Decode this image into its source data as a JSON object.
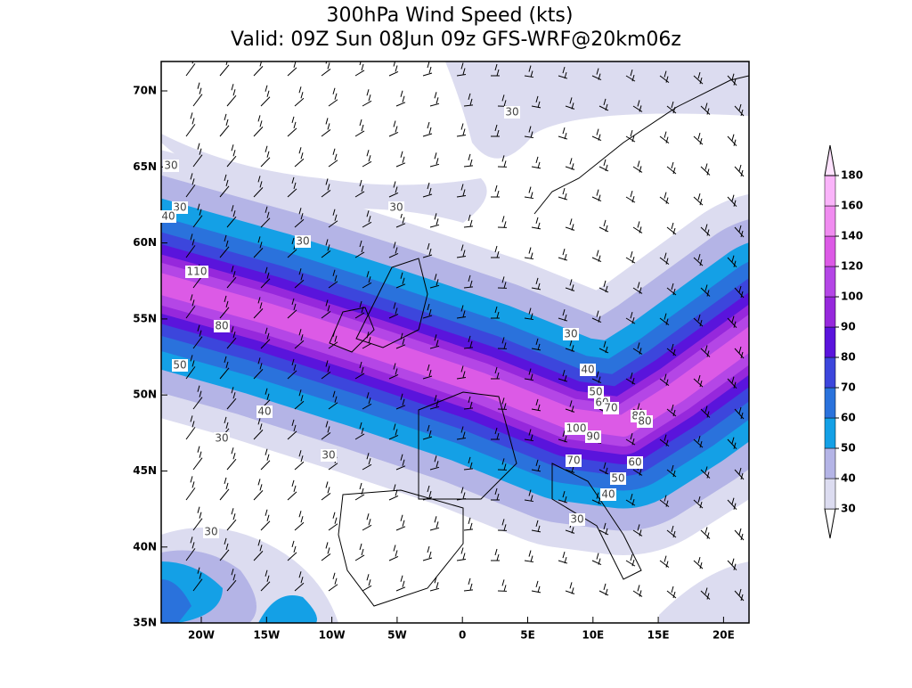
{
  "map": {
    "title": [
      "300hPa Wind Speed (kts)",
      "Valid: 09Z Sun 08Jun 09z GFS-WRF@20km06z"
    ],
    "lat_labels": [
      "70N",
      "65N",
      "60N",
      "55N",
      "50N",
      "45N",
      "40N",
      "35N"
    ],
    "lon_labels": [
      "20W",
      "15W",
      "10W",
      "5W",
      "0",
      "5E",
      "10E",
      "15E",
      "20E"
    ],
    "colorbar": {
      "levels": [
        30,
        40,
        50,
        60,
        70,
        80,
        90,
        100,
        120,
        140,
        160,
        180
      ],
      "colors": [
        "#dcdcf0",
        "#b4b4e6",
        "#14a0e6",
        "#2a72dc",
        "#3c46dc",
        "#5a14dc",
        "#9628dc",
        "#b446e6",
        "#dc5ae6",
        "#f08cf0",
        "#fab4fa"
      ],
      "over_color": "#fde2fd",
      "under_color": "#ffffff"
    },
    "contour_labels": [
      "30",
      "30",
      "30",
      "40",
      "30",
      "30",
      "110",
      "80",
      "50",
      "40",
      "30",
      "30",
      "30",
      "40",
      "50",
      "60",
      "70",
      "80",
      "80",
      "100",
      "90",
      "70",
      "60",
      "50",
      "40",
      "30",
      "30"
    ]
  }
}
